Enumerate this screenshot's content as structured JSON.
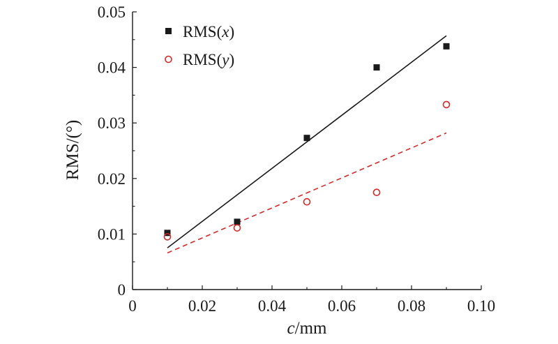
{
  "chart_data": {
    "type": "scatter",
    "xlabel": {
      "var": "c",
      "unit": "/mm"
    },
    "ylabel": "RMS/(°)",
    "xlim": [
      0,
      0.1
    ],
    "ylim": [
      0,
      0.05
    ],
    "x_ticks": [
      "0",
      "0.02",
      "0.04",
      "0.06",
      "0.08",
      "0.10"
    ],
    "y_ticks": [
      "0",
      "0.01",
      "0.02",
      "0.03",
      "0.04",
      "0.05"
    ],
    "legend_position": "top-left",
    "grid": false,
    "series": [
      {
        "name": "RMS(x)",
        "name_prefix": "RMS(",
        "name_var": "x",
        "name_suffix": ")",
        "marker": "filled-square",
        "color": "#1a1a1a",
        "x": [
          0.01,
          0.03,
          0.05,
          0.07,
          0.09
        ],
        "y": [
          0.0102,
          0.0122,
          0.0273,
          0.04,
          0.0438
        ],
        "fit": {
          "style": "solid",
          "x": [
            0.01,
            0.09
          ],
          "y": [
            0.0075,
            0.0457
          ]
        }
      },
      {
        "name": "RMS(y)",
        "name_prefix": "RMS(",
        "name_var": "y",
        "name_suffix": ")",
        "marker": "open-circle",
        "color": "#d42a2a",
        "x": [
          0.01,
          0.03,
          0.05,
          0.07,
          0.09
        ],
        "y": [
          0.0095,
          0.0111,
          0.0158,
          0.0175,
          0.0333
        ],
        "fit": {
          "style": "dashed",
          "x": [
            0.01,
            0.09
          ],
          "y": [
            0.0066,
            0.0282
          ]
        }
      }
    ]
  }
}
